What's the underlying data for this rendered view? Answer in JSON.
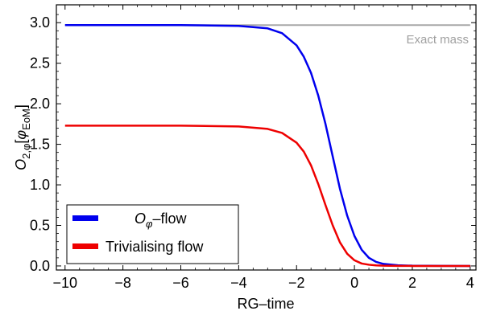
{
  "chart_data": {
    "type": "line",
    "title": "",
    "xlabel": "RG–time",
    "ylabel_main": "O",
    "ylabel_sub": "2,φ",
    "ylabel_bracket_open": "[",
    "ylabel_phi": "φ",
    "ylabel_phi_sub": "EoM",
    "ylabel_bracket_close": "]",
    "xlim": [
      -10.3,
      4.2
    ],
    "ylim": [
      -0.05,
      3.22
    ],
    "xticks": [
      "−10",
      "−8",
      "−6",
      "−4",
      "−2",
      "0",
      "2",
      "4"
    ],
    "xtick_values": [
      -10,
      -8,
      -6,
      -4,
      -2,
      0,
      2,
      4
    ],
    "yticks": [
      "0.0",
      "0.5",
      "1.0",
      "1.5",
      "2.0",
      "2.5",
      "3.0"
    ],
    "ytick_values": [
      0,
      0.5,
      1,
      1.5,
      2,
      2.5,
      3
    ],
    "grid": false,
    "legend_position": "bottom-left",
    "series": [
      {
        "name": "Oφ–flow",
        "legend_main": "O",
        "legend_sub": "φ",
        "legend_rest": "–flow",
        "color": "#0000ee",
        "x": [
          -10,
          -8,
          -6,
          -4,
          -3,
          -2.5,
          -2,
          -1.75,
          -1.5,
          -1.25,
          -1,
          -0.75,
          -0.5,
          -0.25,
          0,
          0.25,
          0.5,
          0.75,
          1,
          1.5,
          2,
          3,
          4
        ],
        "y": [
          2.97,
          2.97,
          2.97,
          2.96,
          2.93,
          2.87,
          2.72,
          2.58,
          2.38,
          2.1,
          1.75,
          1.35,
          0.95,
          0.62,
          0.37,
          0.2,
          0.1,
          0.05,
          0.025,
          0.008,
          0.003,
          0.001,
          0.0
        ]
      },
      {
        "name": "Trivialising flow",
        "legend_main": "Trivialising flow",
        "color": "#ee0000",
        "x": [
          -10,
          -8,
          -6,
          -4,
          -3,
          -2.5,
          -2,
          -1.75,
          -1.5,
          -1.25,
          -1,
          -0.75,
          -0.5,
          -0.25,
          0,
          0.25,
          0.5,
          0.75,
          1,
          1.5,
          2,
          3,
          4
        ],
        "y": [
          1.73,
          1.73,
          1.73,
          1.72,
          1.69,
          1.64,
          1.52,
          1.41,
          1.24,
          1.01,
          0.75,
          0.5,
          0.29,
          0.15,
          0.07,
          0.03,
          0.015,
          0.007,
          0.003,
          0.001,
          0.0,
          0.0,
          0.0
        ]
      },
      {
        "name": "Exact mass",
        "label": "Exact mass",
        "color": "#a8a8a8",
        "x": [
          -10,
          4
        ],
        "y": [
          2.97,
          2.97
        ]
      }
    ]
  }
}
